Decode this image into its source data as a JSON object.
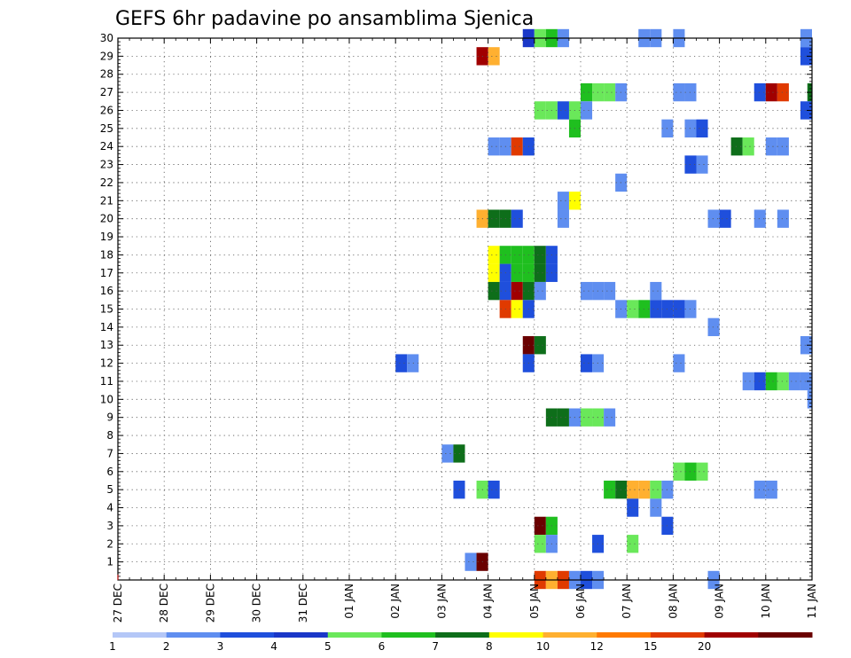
{
  "chart_data": {
    "type": "heatmap",
    "title": "GEFS 6hr padavine po ansamblima Sjenica",
    "xlabel": "",
    "ylabel": "",
    "x_range_days": [
      0,
      15
    ],
    "x_tick_labels": [
      "27 DEC",
      "28 DEC",
      "29 DEC",
      "30 DEC",
      "31 DEC",
      "01 JAN",
      "02 JAN",
      "03 JAN",
      "04 JAN",
      "05 JAN",
      "06 JAN",
      "07 JAN",
      "08 JAN",
      "09 JAN",
      "10 JAN",
      "11 JAN"
    ],
    "y_tick_labels": [
      "1",
      "2",
      "3",
      "4",
      "5",
      "6",
      "7",
      "8",
      "9",
      "10",
      "11",
      "12",
      "13",
      "14",
      "15",
      "16",
      "17",
      "18",
      "19",
      "20",
      "21",
      "22",
      "23",
      "24",
      "25",
      "26",
      "27",
      "28",
      "29",
      "30"
    ],
    "y_range": [
      0,
      30
    ],
    "grid": true,
    "colorbar": {
      "levels": [
        1,
        2,
        3,
        4,
        5,
        6,
        7,
        8,
        10,
        12,
        15,
        20
      ],
      "labels": [
        "1",
        "2",
        "3",
        "4",
        "5",
        "6",
        "7",
        "8",
        "10",
        "12",
        "15",
        "20"
      ],
      "colors": [
        "#b4c7f7",
        "#5f8ef0",
        "#1f4fdc",
        "#1a37c8",
        "#6ae85a",
        "#1fbf1f",
        "#0e6e1a",
        "#ffff00",
        "#ffb030",
        "#ff7a00",
        "#e03a00",
        "#a00000",
        "#6a0000"
      ]
    },
    "cells": [
      [
        30,
        8.75,
        3
      ],
      [
        30,
        9.0,
        4
      ],
      [
        30,
        9.25,
        5
      ],
      [
        30,
        9.5,
        1
      ],
      [
        30,
        11.25,
        1
      ],
      [
        30,
        11.5,
        1
      ],
      [
        30,
        12.0,
        1
      ],
      [
        30,
        14.75,
        1
      ],
      [
        29,
        7.75,
        11
      ],
      [
        29,
        8.0,
        8
      ],
      [
        29,
        14.75,
        2
      ],
      [
        27,
        10.0,
        5
      ],
      [
        27,
        10.25,
        4
      ],
      [
        27,
        10.5,
        4
      ],
      [
        27,
        10.75,
        1
      ],
      [
        27,
        12.0,
        1
      ],
      [
        27,
        12.25,
        1
      ],
      [
        27,
        13.75,
        2
      ],
      [
        27,
        14.0,
        11
      ],
      [
        27,
        14.25,
        10
      ],
      [
        27,
        14.9,
        6
      ],
      [
        26,
        9.0,
        4
      ],
      [
        26,
        9.25,
        4
      ],
      [
        26,
        9.5,
        2
      ],
      [
        26,
        9.75,
        4
      ],
      [
        26,
        10.0,
        1
      ],
      [
        26,
        14.75,
        2
      ],
      [
        25,
        9.75,
        5
      ],
      [
        25,
        11.75,
        1
      ],
      [
        25,
        12.25,
        1
      ],
      [
        25,
        12.5,
        2
      ],
      [
        24,
        8.0,
        1
      ],
      [
        24,
        8.25,
        1
      ],
      [
        24,
        8.5,
        10
      ],
      [
        24,
        8.75,
        2
      ],
      [
        24,
        13.25,
        6
      ],
      [
        24,
        13.5,
        4
      ],
      [
        24,
        14.0,
        1
      ],
      [
        24,
        14.25,
        1
      ],
      [
        23,
        12.25,
        2
      ],
      [
        23,
        12.5,
        1
      ],
      [
        22,
        10.75,
        1
      ],
      [
        21,
        9.5,
        1
      ],
      [
        21,
        9.75,
        7
      ],
      [
        20,
        7.75,
        8
      ],
      [
        20,
        8.0,
        6
      ],
      [
        20,
        8.25,
        6
      ],
      [
        20,
        8.5,
        2
      ],
      [
        20,
        9.5,
        1
      ],
      [
        20,
        12.75,
        1
      ],
      [
        20,
        13.0,
        2
      ],
      [
        20,
        13.75,
        1
      ],
      [
        20,
        14.25,
        1
      ],
      [
        18,
        8.0,
        7
      ],
      [
        18,
        8.25,
        5
      ],
      [
        18,
        8.5,
        5
      ],
      [
        18,
        8.75,
        5
      ],
      [
        18,
        9.0,
        6
      ],
      [
        18,
        9.25,
        2
      ],
      [
        17,
        8.0,
        7
      ],
      [
        17,
        8.25,
        2
      ],
      [
        17,
        8.5,
        5
      ],
      [
        17,
        8.75,
        5
      ],
      [
        17,
        9.0,
        6
      ],
      [
        17,
        9.25,
        2
      ],
      [
        16,
        8.0,
        6
      ],
      [
        16,
        8.25,
        2
      ],
      [
        16,
        8.5,
        11
      ],
      [
        16,
        8.75,
        6
      ],
      [
        16,
        9.0,
        1
      ],
      [
        16,
        10.0,
        1
      ],
      [
        16,
        10.25,
        1
      ],
      [
        16,
        10.5,
        1
      ],
      [
        16,
        11.5,
        1
      ],
      [
        15,
        8.25,
        10
      ],
      [
        15,
        8.5,
        7
      ],
      [
        15,
        8.75,
        2
      ],
      [
        15,
        10.75,
        1
      ],
      [
        15,
        11.0,
        4
      ],
      [
        15,
        11.25,
        5
      ],
      [
        15,
        11.5,
        2
      ],
      [
        15,
        11.75,
        2
      ],
      [
        15,
        12.0,
        2
      ],
      [
        15,
        12.25,
        1
      ],
      [
        14,
        12.75,
        1
      ],
      [
        13,
        8.75,
        12
      ],
      [
        13,
        9.0,
        6
      ],
      [
        13,
        14.75,
        1
      ],
      [
        12,
        6.0,
        2
      ],
      [
        12,
        6.25,
        1
      ],
      [
        12,
        8.75,
        2
      ],
      [
        12,
        10.0,
        2
      ],
      [
        12,
        10.25,
        1
      ],
      [
        12,
        12.0,
        1
      ],
      [
        11,
        13.5,
        1
      ],
      [
        11,
        13.75,
        2
      ],
      [
        11,
        14.0,
        5
      ],
      [
        11,
        14.25,
        4
      ],
      [
        11,
        14.5,
        1
      ],
      [
        11,
        14.75,
        1
      ],
      [
        10,
        14.9,
        1
      ],
      [
        9,
        9.25,
        6
      ],
      [
        9,
        9.5,
        6
      ],
      [
        9,
        9.75,
        1
      ],
      [
        9,
        10.0,
        4
      ],
      [
        9,
        10.25,
        4
      ],
      [
        9,
        10.5,
        1
      ],
      [
        7,
        7.0,
        1
      ],
      [
        7,
        7.25,
        6
      ],
      [
        6,
        12.0,
        4
      ],
      [
        6,
        12.25,
        5
      ],
      [
        6,
        12.5,
        4
      ],
      [
        5,
        7.25,
        2
      ],
      [
        5,
        7.75,
        4
      ],
      [
        5,
        8.0,
        2
      ],
      [
        5,
        10.5,
        5
      ],
      [
        5,
        10.75,
        6
      ],
      [
        5,
        11.0,
        8
      ],
      [
        5,
        11.25,
        8
      ],
      [
        5,
        11.5,
        4
      ],
      [
        5,
        11.75,
        1
      ],
      [
        5,
        13.75,
        1
      ],
      [
        5,
        14.0,
        1
      ],
      [
        4,
        11.0,
        2
      ],
      [
        4,
        11.5,
        1
      ],
      [
        3,
        9.0,
        12
      ],
      [
        3,
        9.25,
        5
      ],
      [
        3,
        11.75,
        2
      ],
      [
        2,
        9.0,
        4
      ],
      [
        2,
        9.25,
        1
      ],
      [
        2,
        10.25,
        2
      ],
      [
        2,
        11.0,
        4
      ],
      [
        1,
        7.5,
        1
      ],
      [
        1,
        7.75,
        12
      ],
      [
        0,
        9.0,
        10
      ],
      [
        0,
        9.25,
        8
      ],
      [
        0,
        9.5,
        10
      ],
      [
        0,
        9.75,
        1
      ],
      [
        0,
        10.0,
        2
      ],
      [
        0,
        10.25,
        1
      ],
      [
        0,
        12.75,
        1
      ]
    ]
  }
}
